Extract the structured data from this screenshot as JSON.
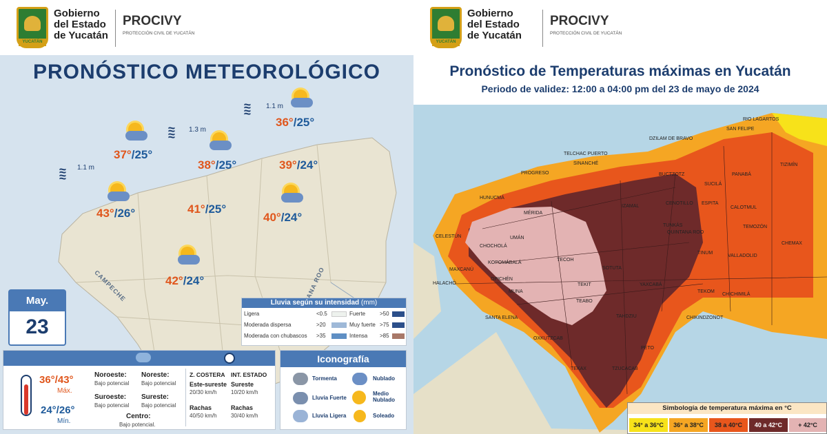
{
  "header": {
    "gov_line1": "Gobierno",
    "gov_line2": "del Estado",
    "gov_line3": "de Yucatán",
    "seal_text": "YUCATÁN",
    "brand": "PROCIVY",
    "brand_sub": "PROTECCIÓN CIVIL DE YUCATÁN"
  },
  "left": {
    "title": "PRONÓSTICO METEOROLÓGICO",
    "waves": [
      "1.1 m",
      "1.3 m",
      "1.1 m"
    ],
    "cities": [
      {
        "max": "37°",
        "min": "/25°"
      },
      {
        "max": "38°",
        "min": "/25°"
      },
      {
        "max": "36°",
        "min": "/25°"
      },
      {
        "max": "39°",
        "min": "/24°"
      },
      {
        "max": "43°",
        "min": "/26°"
      },
      {
        "max": "41°",
        "min": "/25°"
      },
      {
        "max": "40°",
        "min": "/24°"
      },
      {
        "max": "42°",
        "min": "/24°"
      }
    ],
    "state_labels": [
      "CAMPECHE",
      "QUINTANA ROO"
    ],
    "calendar": {
      "month": "May.",
      "day": "23"
    },
    "rain_legend": {
      "title": "Lluvia según su intensidad",
      "unit": "(mm)",
      "rows": [
        {
          "label": "Ligera",
          "value": "<0.5",
          "color": "#ffffff"
        },
        {
          "label": "Moderada dispersa",
          "value": ">20",
          "color": "#9fb9d8"
        },
        {
          "label": "Moderada con chubascos",
          "value": ">35",
          "color": "#5f8fc4"
        },
        {
          "label": "Fuerte",
          "value": ">50",
          "color": "#c9d7e6"
        },
        {
          "label": "Muy fuerte",
          "value": ">75",
          "color": "#2c4f8a"
        },
        {
          "label": "Intensa",
          "value": ">85",
          "color": "#a87868"
        }
      ]
    },
    "bottom": {
      "temp_max": "36°/43°",
      "max_label": "Máx.",
      "temp_min": "24°/26°",
      "min_label": "Mín.",
      "regions": [
        {
          "name": "Noroeste:",
          "value": "Bajo potencial"
        },
        {
          "name": "Noreste:",
          "value": "Bajo potencial"
        },
        {
          "name": "Suroeste:",
          "value": "Bajo potencial"
        },
        {
          "name": "Sureste:",
          "value": "Bajo potencial"
        },
        {
          "name": "Centro:",
          "value": "Bajo potencial."
        }
      ],
      "wind_headers": [
        "Z. COSTERA",
        "INT. ESTADO"
      ],
      "wind_dir": [
        "Este-sureste",
        "Sureste"
      ],
      "wind_speed": [
        "20/30 km/h",
        "10/20 km/h"
      ],
      "gust_label": [
        "Rachas",
        "Rachas"
      ],
      "gust_speed": [
        "40/50 km/h",
        "30/40 km/h"
      ]
    },
    "iconography": {
      "title": "Iconografía",
      "items": [
        "Tormenta",
        "Nublado",
        "Lluvia Fuerte",
        "Medio Nublado",
        "Lluvia Ligera",
        "Soleado"
      ]
    }
  },
  "right": {
    "title": "Pronóstico de Temperaturas máximas en Yucatán",
    "subtitle": "Periodo de validez: 12:00 a 04:00 pm del 23 de mayo de 2024",
    "municipalities": [
      "RIO LAGARTOS",
      "SAN FELIPE",
      "DZILAM DE BRAVO",
      "TELCHAC PUERTO",
      "SINANCHÉ",
      "PROGRESO",
      "HUNUCMÁ",
      "BUCTZOTZ",
      "PANABÁ",
      "TIZIMÍN",
      "SUCILÁ",
      "ESPITA",
      "CALOTMUL",
      "TEMOZÓN",
      "CHEMAX",
      "CELESTÚN",
      "MÉRIDA",
      "UMÁN",
      "IZAMAL",
      "CENOTILLO",
      "TUNKÁS",
      "QUINTANA ROO",
      "TINUM",
      "VALLADOLID",
      "CHOCHOLÁ",
      "KOPOMÁ",
      "ABALÁ",
      "TECOH",
      "SOTUTA",
      "YAXCABÁ",
      "MAXCANÚ",
      "HALACHÓ",
      "OPICHÉN",
      "TEKIT",
      "CHICHIMILÁ",
      "MUNA",
      "TEABO",
      "TEKOM",
      "CHIKINDZONOT",
      "SANTA ELENA",
      "TAHDZIU",
      "OXKUTZCAB",
      "TEKAX",
      "TZUCACAB",
      "PETO"
    ],
    "legend": {
      "title": "Simbología de temperatura máxima en °C",
      "classes": [
        {
          "label": "34° a 36°C",
          "color": "#f7e21a"
        },
        {
          "label": "36° a 38°C",
          "color": "#f5a623"
        },
        {
          "label": "38 a 40°C",
          "color": "#e8561c"
        },
        {
          "label": "40 a 42°C",
          "color": "#6e2a2a"
        },
        {
          "label": "+ 42°C",
          "color": "#e3b3b3"
        }
      ]
    }
  }
}
